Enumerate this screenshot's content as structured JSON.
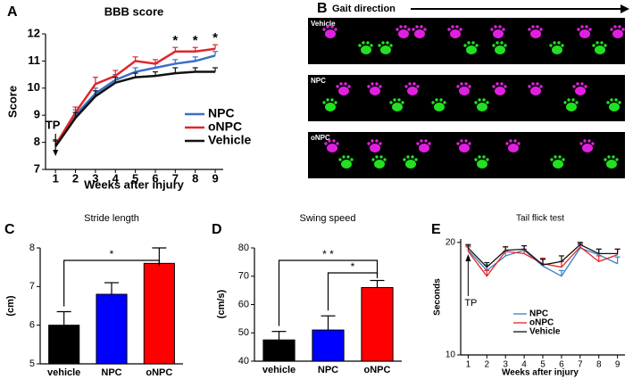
{
  "chart_data": [
    {
      "panel": "A",
      "type": "line",
      "title": "BBB score",
      "x_label": "Weeks after injury",
      "y_label": "Score",
      "x": [
        1,
        2,
        3,
        4,
        5,
        6,
        7,
        8,
        9
      ],
      "xlim": [
        0.5,
        9.4
      ],
      "xticks": [
        1,
        2,
        3,
        4,
        5,
        6,
        7,
        8,
        9
      ],
      "ylim": [
        7,
        12
      ],
      "yticks": [
        7,
        8,
        9,
        10,
        11,
        12
      ],
      "legend": "lower right",
      "series": [
        {
          "name": "NPC",
          "color": "#3a6fc4",
          "values": [
            7.9,
            9.0,
            9.8,
            10.3,
            10.6,
            10.75,
            10.9,
            11.0,
            11.2
          ],
          "errors": [
            0.2,
            0.2,
            0.2,
            0.2,
            0.15,
            0.15,
            0.15,
            0.15,
            0.15
          ]
        },
        {
          "name": "oNPC",
          "color": "#e0262b",
          "values": [
            7.9,
            9.1,
            10.15,
            10.45,
            11.0,
            10.9,
            11.35,
            11.35,
            11.45
          ],
          "errors": [
            0.2,
            0.2,
            0.25,
            0.2,
            0.15,
            0.15,
            0.15,
            0.15,
            0.15
          ]
        },
        {
          "name": "Vehicle",
          "color": "#111111",
          "values": [
            7.85,
            8.9,
            9.7,
            10.2,
            10.4,
            10.45,
            10.55,
            10.6,
            10.6
          ],
          "errors": [
            0.2,
            0.2,
            0.2,
            0.2,
            0.15,
            0.15,
            0.2,
            0.15,
            0.15
          ]
        }
      ],
      "markers": [
        {
          "x": 7,
          "label": "*"
        },
        {
          "x": 8,
          "label": "*"
        },
        {
          "x": 9,
          "label": "*"
        }
      ],
      "arrow": {
        "x": 1,
        "label": "TP"
      }
    },
    {
      "panel": "C",
      "type": "bar",
      "title": "Stride length",
      "y_label": "(cm)",
      "categories": [
        "vehicle",
        "NPC",
        "oNPC"
      ],
      "values": [
        6.0,
        6.8,
        7.6
      ],
      "errors": [
        0.35,
        0.3,
        0.4
      ],
      "colors": [
        "#000000",
        "#0000ff",
        "#ff0000"
      ],
      "ylim": [
        5,
        8
      ],
      "yticks": [
        5,
        6,
        7,
        8
      ],
      "significance": [
        {
          "from": 0,
          "to": 2,
          "label": "*"
        }
      ]
    },
    {
      "panel": "D",
      "type": "bar",
      "title": "Swing speed",
      "y_label": "(cm/s)",
      "categories": [
        "vehicle",
        "NPC",
        "oNPC"
      ],
      "values": [
        47.5,
        51,
        66
      ],
      "errors": [
        3,
        5,
        2.5
      ],
      "colors": [
        "#000000",
        "#0000ff",
        "#ff0000"
      ],
      "ylim": [
        40,
        80
      ],
      "yticks": [
        40,
        50,
        60,
        70,
        80
      ],
      "significance": [
        {
          "from": 0,
          "to": 2,
          "label": "* *"
        },
        {
          "from": 1,
          "to": 2,
          "label": "*"
        }
      ]
    },
    {
      "panel": "E",
      "type": "line",
      "title": "Tail flick test",
      "x_label": "Weeks after injury",
      "y_label": "Seconds",
      "x": [
        1,
        2,
        3,
        4,
        5,
        6,
        7,
        8,
        9
      ],
      "xlim": [
        0.6,
        9.4
      ],
      "xticks": [
        1,
        2,
        3,
        4,
        5,
        6,
        7,
        8,
        9
      ],
      "ylim": [
        10,
        20.3
      ],
      "yticks": [
        10,
        20
      ],
      "legend": "lower right",
      "series": [
        {
          "name": "NPC",
          "color": "#3a7fc4",
          "values": [
            19.3,
            17.5,
            18.8,
            19.3,
            17.9,
            17.0,
            19.5,
            18.9,
            18.1
          ],
          "errors": [
            0.4,
            0.5,
            0.4,
            0.4,
            0.6,
            0.5,
            0.3,
            0.5,
            0.6
          ]
        },
        {
          "name": "oNPC",
          "color": "#e0262b",
          "values": [
            19.2,
            17.0,
            19.2,
            19.0,
            18.1,
            17.8,
            19.6,
            18.3,
            18.9
          ],
          "errors": [
            0.4,
            0.5,
            0.4,
            0.4,
            0.5,
            0.5,
            0.3,
            0.5,
            0.5
          ]
        },
        {
          "name": "Vehicle",
          "color": "#111111",
          "values": [
            19.5,
            17.8,
            19.3,
            19.4,
            18.0,
            18.3,
            19.8,
            19.0,
            19.0
          ],
          "errors": [
            0.3,
            0.4,
            0.3,
            0.3,
            0.5,
            0.5,
            0.2,
            0.4,
            0.4
          ]
        }
      ],
      "arrow": {
        "x": 1,
        "label": "TP"
      }
    }
  ],
  "gait_panel": {
    "panel": "B",
    "title": "Gait direction",
    "rows": [
      "Vehicle",
      "NPC",
      "oNPC"
    ]
  }
}
